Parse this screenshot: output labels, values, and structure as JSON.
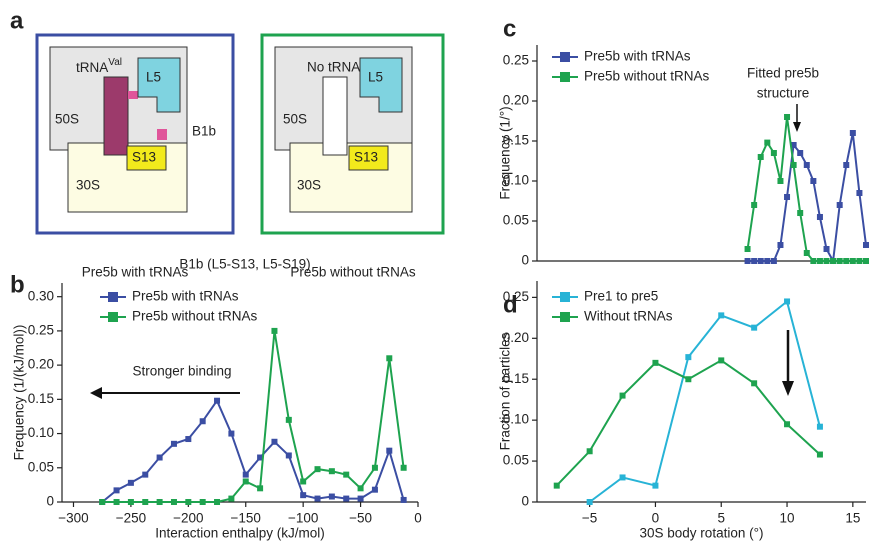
{
  "diagram": {
    "label": "a",
    "left": {
      "trna": "tRNA",
      "trna_superscript": "Val",
      "large": "50S",
      "l5": "L5",
      "bridge": "B1b",
      "s13": "S13",
      "small": "30S",
      "caption": "Pre5b with tRNAs"
    },
    "right": {
      "trna": "No tRNA",
      "large": "50S",
      "l5": "L5",
      "s13": "S13",
      "small": "30S",
      "caption": "Pre5b without tRNAs"
    }
  },
  "chart_data": [
    {
      "type": "line",
      "label": "b",
      "title": "B1b (L5-S13, L5-S19)",
      "annotation": "Stronger binding",
      "xlabel": "Interaction enthalpy (kJ/mol)",
      "ylabel": "Frequency (1/(kJ/mol))",
      "x": [
        -275,
        -262.5,
        -250,
        -237.5,
        -225,
        -212.5,
        -200,
        -187.5,
        -175,
        -162.5,
        -150,
        -137.5,
        -125,
        -112.5,
        -100,
        -87.5,
        -75,
        -62.5,
        -50,
        -37.5,
        -25,
        -12.5
      ],
      "series": [
        {
          "name": "Pre5b with tRNAs",
          "color": "#3b4ea3",
          "values": [
            0,
            0.017,
            0.028,
            0.04,
            0.065,
            0.085,
            0.092,
            0.118,
            0.148,
            0.1,
            0.04,
            0.065,
            0.088,
            0.068,
            0.01,
            0.005,
            0.008,
            0.005,
            0.005,
            0.018,
            0.075,
            0.003
          ]
        },
        {
          "name": "Pre5b without tRNAs",
          "color": "#1ea34f",
          "values": [
            0,
            0,
            0,
            0,
            0,
            0,
            0,
            0,
            0,
            0.005,
            0.03,
            0.02,
            0.25,
            0.12,
            0.03,
            0.048,
            0.045,
            0.04,
            0.02,
            0.05,
            0.21,
            0.05
          ]
        }
      ],
      "xlim": [
        -310,
        0
      ],
      "ylim": [
        0,
        0.32
      ],
      "xticks": [
        {
          "value": -300,
          "label": "−300"
        },
        {
          "value": -250,
          "label": "−250"
        },
        {
          "value": -200,
          "label": "−200"
        },
        {
          "value": -150,
          "label": "−150"
        },
        {
          "value": -100,
          "label": "−100"
        },
        {
          "value": -50,
          "label": "−50"
        },
        0
      ],
      "yticks": [
        0,
        0.05,
        {
          "value": 0.1,
          "label": "0.10"
        },
        0.15,
        {
          "value": 0.2,
          "label": "0.20"
        },
        0.25,
        {
          "value": 0.3,
          "label": "0.30"
        }
      ],
      "legend": "upper left"
    },
    {
      "type": "line",
      "label": "c",
      "annotation": [
        "Fitted pre5b",
        "structure"
      ],
      "ylabel": "Frequency (1/°)",
      "x": [
        7,
        7.5,
        8,
        8.5,
        9,
        9.5,
        10,
        10.5,
        11,
        11.5,
        12,
        12.5,
        13,
        13.5,
        14,
        14.5,
        15,
        15.5,
        16
      ],
      "series": [
        {
          "name": "Pre5b with tRNAs",
          "color": "#3b4ea3",
          "values": [
            0,
            0,
            0,
            0,
            0,
            0.02,
            0.08,
            0.145,
            0.135,
            0.12,
            0.1,
            0.055,
            0.015,
            0,
            0.07,
            0.12,
            0.16,
            0.085,
            0.02
          ]
        },
        {
          "name": "Pre5b without tRNAs",
          "color": "#1ea34f",
          "values": [
            0.015,
            0.07,
            0.13,
            0.148,
            0.135,
            0.1,
            0.18,
            0.12,
            0.06,
            0.01,
            0,
            0,
            0,
            0,
            0,
            0,
            0,
            0,
            0
          ]
        }
      ],
      "xlim": [
        -9,
        16
      ],
      "ylim": [
        0,
        0.27
      ],
      "yticks": [
        0,
        0.05,
        {
          "value": 0.1,
          "label": "0.10"
        },
        0.15,
        {
          "value": 0.2,
          "label": "0.20"
        },
        0.25
      ],
      "legend": "upper left"
    },
    {
      "type": "line",
      "label": "d",
      "xlabel": "30S body rotation (°)",
      "ylabel": "Fraction of particles",
      "x": [
        -7.5,
        -5,
        -2.5,
        0,
        2.5,
        5,
        7.5,
        10,
        12.5
      ],
      "series": [
        {
          "name": "Pre1 to pre5",
          "color": "#27b3d6",
          "values": [
            null,
            0,
            0.03,
            0.02,
            0.177,
            0.228,
            0.213,
            0.245,
            0.092
          ]
        },
        {
          "name": "Without tRNAs",
          "color": "#1ea34f",
          "values": [
            0.02,
            0.062,
            0.13,
            0.17,
            0.15,
            0.173,
            0.145,
            0.095,
            0.058
          ]
        }
      ],
      "xlim": [
        -9,
        16
      ],
      "ylim": [
        0,
        0.27
      ],
      "xticks": [
        {
          "value": -5,
          "label": "−5"
        },
        0,
        5,
        10,
        15
      ],
      "yticks": [
        0,
        0.05,
        {
          "value": 0.1,
          "label": "0.10"
        },
        0.15,
        {
          "value": 0.2,
          "label": "0.20"
        },
        0.25
      ],
      "legend": "upper left"
    }
  ]
}
